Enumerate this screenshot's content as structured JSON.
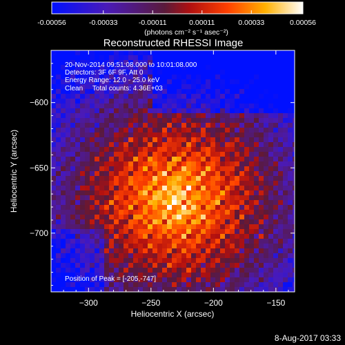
{
  "colorbar": {
    "tick_labels": [
      "-0.00056",
      "-0.00033",
      "-0.00011",
      "0.00011",
      "0.00033",
      "0.00056"
    ],
    "tick_values": [
      -0.00056,
      -0.00033,
      -0.00011,
      0.00011,
      0.00033,
      0.00056
    ],
    "range": [
      -0.00056,
      0.00056
    ],
    "unit_label": "(photons cm⁻² s⁻¹ asec⁻²)"
  },
  "chart_data": {
    "type": "heatmap",
    "title": "Reconstructed RHESSI Image",
    "xlabel": "Heliocentric X (arcsec)",
    "ylabel": "Heliocentric Y (arcsec)",
    "xlim": [
      -330,
      -135
    ],
    "ylim": [
      -745,
      -560
    ],
    "x_ticks": [
      -300,
      -250,
      -200,
      -150
    ],
    "x_tick_labels": [
      "−300",
      "−250",
      "−200",
      "−150"
    ],
    "y_ticks": [
      -600,
      -650,
      -700
    ],
    "y_tick_labels": [
      "−600",
      "−650",
      "−700"
    ],
    "annotations": [
      "20-Nov-2014 09:51:08.000 to 10:01:08.000",
      "Detectors: 3F 6F 9F, Att 0",
      "Energy Range: 12.0 - 25.0 keV",
      "Clean     Total counts: 4.36E+03"
    ],
    "peak_label": "Position of Peak = [-205,-747]",
    "peak": [
      -205,
      -747
    ],
    "colormap": "blue-purple-red-orange-yellow-white"
  },
  "footer": {
    "timestamp": "8-Aug-2017 03:33"
  }
}
